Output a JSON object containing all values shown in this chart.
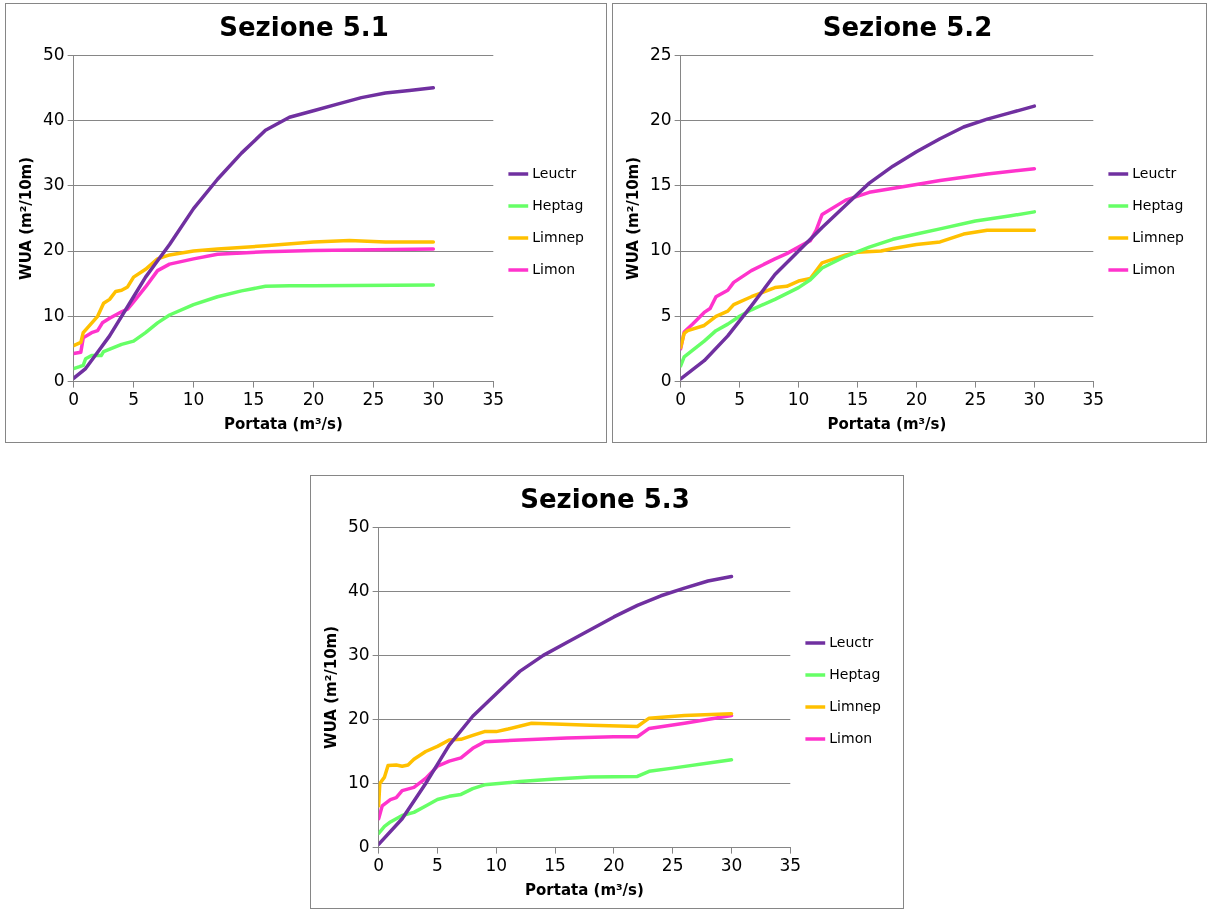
{
  "chart_data": [
    {
      "type": "line",
      "title": "Sezione 5.1",
      "xlabel": "Portata (m³/s)",
      "ylabel": "WUA (m²/10m)",
      "xlim": [
        0,
        35
      ],
      "xticks": [
        0,
        5,
        10,
        15,
        20,
        25,
        30,
        35
      ],
      "ylim": [
        0,
        50
      ],
      "yticks": [
        0,
        10,
        20,
        30,
        40,
        50
      ],
      "grid": "y",
      "legend": "right",
      "marker": "none",
      "line_style": "solid",
      "series": [
        {
          "name": "Leuctr",
          "color": "#7030a0",
          "x": [
            0,
            1,
            2,
            3,
            4,
            5,
            6,
            7,
            8,
            10,
            12,
            14,
            16,
            17,
            18,
            20,
            22,
            24,
            26,
            28,
            30
          ],
          "values": [
            0.5,
            2,
            4.5,
            7,
            10,
            13,
            16,
            18.5,
            21,
            26.5,
            31,
            35,
            38.5,
            39.5,
            40.5,
            41.5,
            42.5,
            43.5,
            44.2,
            44.6,
            45
          ]
        },
        {
          "name": "Heptag",
          "color": "#66ff66",
          "x": [
            0,
            0.5,
            0.8,
            1,
            1.5,
            2,
            2.3,
            2.5,
            4,
            5,
            6,
            7,
            8,
            10,
            12,
            14,
            16,
            18,
            20,
            30
          ],
          "values": [
            2,
            2.3,
            2.5,
            3.5,
            4,
            4,
            4,
            4.6,
            5.7,
            6.2,
            7.5,
            9,
            10.2,
            11.8,
            13,
            13.9,
            14.6,
            14.7,
            14.7,
            14.8
          ]
        },
        {
          "name": "Limnep",
          "color": "#ffc000",
          "x": [
            0,
            0.6,
            0.8,
            2,
            2.5,
            3,
            3.5,
            4,
            4.5,
            5,
            6,
            7,
            8,
            10,
            12,
            16,
            20,
            23,
            26,
            30
          ],
          "values": [
            5.5,
            6,
            7.5,
            10,
            12,
            12.6,
            13.8,
            14,
            14.5,
            16,
            17.2,
            18.8,
            19.4,
            20,
            20.3,
            20.8,
            21.4,
            21.6,
            21.4,
            21.4
          ]
        },
        {
          "name": "Limon",
          "color": "#ff33cc",
          "x": [
            0,
            0.6,
            0.8,
            1.5,
            2,
            2.4,
            3,
            4,
            4.5,
            5,
            6,
            7,
            8,
            10,
            12,
            16,
            20,
            30
          ],
          "values": [
            4.3,
            4.5,
            6.7,
            7.5,
            7.8,
            9,
            9.7,
            10.7,
            11.1,
            12.2,
            14.5,
            17,
            18,
            18.8,
            19.5,
            19.9,
            20.1,
            20.3
          ]
        }
      ]
    },
    {
      "type": "line",
      "title": "Sezione 5.2",
      "xlabel": "Portata (m³/s)",
      "ylabel": "WUA (m²/10m)",
      "xlim": [
        0,
        35
      ],
      "xticks": [
        0,
        5,
        10,
        15,
        20,
        25,
        30,
        35
      ],
      "ylim": [
        0,
        25
      ],
      "yticks": [
        0,
        5,
        10,
        15,
        20,
        25
      ],
      "grid": "y",
      "legend": "right",
      "marker": "none",
      "line_style": "solid",
      "series": [
        {
          "name": "Leuctr",
          "color": "#7030a0",
          "x": [
            0,
            2,
            4,
            6,
            8,
            10,
            12,
            14,
            16,
            18,
            20,
            22,
            24,
            26,
            28,
            30
          ],
          "values": [
            0.2,
            1.6,
            3.5,
            5.8,
            8.2,
            10,
            11.8,
            13.5,
            15.2,
            16.5,
            17.6,
            18.6,
            19.5,
            20.1,
            20.6,
            21.1
          ]
        },
        {
          "name": "Heptag",
          "color": "#66ff66",
          "x": [
            0,
            0.3,
            1,
            2,
            3,
            4,
            5,
            6,
            8,
            10,
            11,
            12,
            14,
            16,
            18,
            20,
            22,
            25,
            28,
            30
          ],
          "values": [
            1.2,
            1.9,
            2.4,
            3.1,
            3.9,
            4.4,
            5,
            5.5,
            6.3,
            7.2,
            7.8,
            8.7,
            9.6,
            10.3,
            10.9,
            11.3,
            11.7,
            12.3,
            12.7,
            13
          ]
        },
        {
          "name": "Limnep",
          "color": "#ffc000",
          "x": [
            0,
            0.3,
            0.6,
            2,
            3,
            4,
            4.5,
            6,
            8,
            9,
            10,
            11,
            12,
            14,
            15,
            17,
            18,
            20,
            22,
            24,
            26,
            30
          ],
          "values": [
            2.6,
            3.7,
            3.9,
            4.3,
            5,
            5.4,
            5.9,
            6.5,
            7.2,
            7.3,
            7.7,
            7.9,
            9.1,
            9.7,
            9.9,
            10,
            10.2,
            10.5,
            10.7,
            11.3,
            11.6,
            11.6
          ]
        },
        {
          "name": "Limon",
          "color": "#ff33cc",
          "x": [
            0,
            0.3,
            1,
            2,
            2.5,
            3,
            4,
            4.5,
            6,
            8,
            9,
            10,
            11,
            11.5,
            12,
            14,
            16,
            20,
            22,
            26,
            30
          ],
          "values": [
            2.5,
            3.8,
            4.4,
            5.3,
            5.6,
            6.5,
            7,
            7.6,
            8.5,
            9.4,
            9.8,
            10.3,
            10.8,
            11.6,
            12.8,
            13.9,
            14.5,
            15.1,
            15.4,
            15.9,
            16.3
          ]
        }
      ]
    },
    {
      "type": "line",
      "title": "Sezione 5.3",
      "xlabel": "Portata (m³/s)",
      "ylabel": "WUA (m²/10m)",
      "xlim": [
        0,
        35
      ],
      "xticks": [
        0,
        5,
        10,
        15,
        20,
        25,
        30,
        35
      ],
      "ylim": [
        0,
        50
      ],
      "yticks": [
        0,
        10,
        20,
        30,
        40,
        50
      ],
      "grid": "y",
      "legend": "right",
      "marker": "none",
      "line_style": "solid",
      "series": [
        {
          "name": "Leuctr",
          "color": "#7030a0",
          "x": [
            0,
            2,
            4,
            5,
            6,
            8,
            10,
            12,
            14,
            16,
            18,
            20,
            22,
            24,
            26,
            28,
            30
          ],
          "values": [
            0.5,
            4.5,
            10,
            13,
            16,
            20.5,
            24,
            27.5,
            30,
            32,
            34,
            36,
            37.8,
            39.3,
            40.5,
            41.6,
            42.3
          ]
        },
        {
          "name": "Heptag",
          "color": "#66ff66",
          "x": [
            0,
            0.5,
            1,
            2,
            3,
            4,
            5,
            6,
            7,
            8,
            9,
            12,
            15,
            18,
            22,
            23,
            25,
            30
          ],
          "values": [
            2.2,
            3.3,
            4,
            5,
            5.5,
            6.5,
            7.5,
            8,
            8.3,
            9.2,
            9.8,
            10.3,
            10.7,
            11,
            11.1,
            11.9,
            12.4,
            13.7
          ]
        },
        {
          "name": "Limnep",
          "color": "#ffc000",
          "x": [
            0,
            0.1,
            0.5,
            0.8,
            1.5,
            2,
            2.5,
            3,
            4,
            5,
            6,
            7,
            8,
            9,
            10,
            11,
            13,
            15,
            18,
            22,
            23,
            26,
            30
          ],
          "values": [
            6.5,
            10,
            11,
            12.8,
            12.9,
            12.7,
            12.9,
            13.8,
            15,
            15.8,
            16.8,
            16.9,
            17.5,
            18.1,
            18.1,
            18.5,
            19.4,
            19.3,
            19.1,
            18.9,
            20.2,
            20.6,
            20.9
          ]
        },
        {
          "name": "Limon",
          "color": "#ff33cc",
          "x": [
            0,
            0.3,
            1,
            1.5,
            2,
            3,
            4,
            5,
            6,
            7,
            8,
            9,
            12,
            16,
            20,
            22,
            23,
            26,
            30
          ],
          "values": [
            4.5,
            6.5,
            7.5,
            7.8,
            8.9,
            9.4,
            10.8,
            12.7,
            13.5,
            14,
            15.5,
            16.5,
            16.8,
            17.1,
            17.3,
            17.3,
            18.6,
            19.4,
            20.6
          ]
        }
      ]
    }
  ]
}
